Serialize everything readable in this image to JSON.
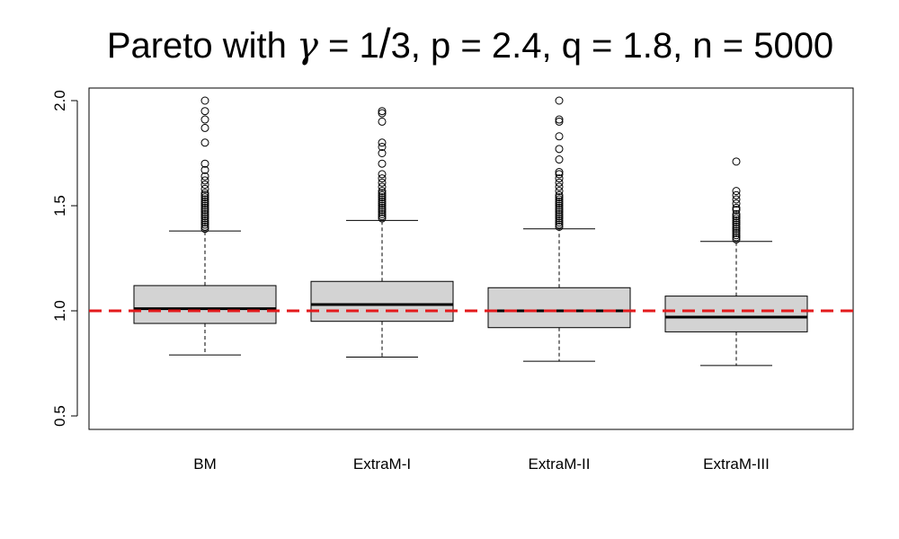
{
  "chart_data": {
    "type": "boxplot",
    "title": "Pareto with γ = 1/3, p = 2.4, q = 1.8, n = 5000",
    "title_parts": {
      "prefix": "Pareto with ",
      "gamma_symbol": "γ",
      "eq1": " = 1",
      "slash": "/",
      "rest": "3, p = 2.4, q = 1.8, n = 5000"
    },
    "xlabel": "",
    "ylabel": "",
    "ylim": [
      0.45,
      2.04
    ],
    "yticks": [
      0.5,
      1.0,
      1.5,
      2.0
    ],
    "ytick_labels": [
      "0.5",
      "1.0",
      "1.5",
      "2.0"
    ],
    "categories": [
      "BM",
      "ExtraM-I",
      "ExtraM-II",
      "ExtraM-III"
    ],
    "boxes": [
      {
        "name": "BM",
        "whisker_low": 0.79,
        "q1": 0.94,
        "median": 1.01,
        "q3": 1.12,
        "whisker_high": 1.38,
        "outliers": [
          1.39,
          1.4,
          1.41,
          1.42,
          1.43,
          1.44,
          1.45,
          1.46,
          1.47,
          1.48,
          1.49,
          1.5,
          1.51,
          1.52,
          1.53,
          1.54,
          1.55,
          1.56,
          1.58,
          1.6,
          1.62,
          1.64,
          1.67,
          1.7,
          1.8,
          1.87,
          1.91,
          1.95,
          2.0
        ]
      },
      {
        "name": "ExtraM-I",
        "whisker_low": 0.78,
        "q1": 0.95,
        "median": 1.03,
        "q3": 1.14,
        "whisker_high": 1.43,
        "outliers": [
          1.44,
          1.45,
          1.46,
          1.47,
          1.48,
          1.49,
          1.5,
          1.51,
          1.52,
          1.53,
          1.54,
          1.55,
          1.56,
          1.57,
          1.59,
          1.61,
          1.63,
          1.65,
          1.7,
          1.75,
          1.78,
          1.8,
          1.9,
          1.94,
          1.95
        ]
      },
      {
        "name": "ExtraM-II",
        "whisker_low": 0.76,
        "q1": 0.92,
        "median": 1.0,
        "q3": 1.11,
        "whisker_high": 1.39,
        "outliers": [
          1.4,
          1.41,
          1.42,
          1.43,
          1.44,
          1.45,
          1.46,
          1.47,
          1.48,
          1.49,
          1.5,
          1.51,
          1.52,
          1.53,
          1.54,
          1.55,
          1.57,
          1.59,
          1.61,
          1.63,
          1.65,
          1.66,
          1.72,
          1.77,
          1.83,
          1.9,
          1.91,
          2.0
        ]
      },
      {
        "name": "ExtraM-III",
        "whisker_low": 0.74,
        "q1": 0.9,
        "median": 0.97,
        "q3": 1.07,
        "whisker_high": 1.33,
        "outliers": [
          1.34,
          1.35,
          1.36,
          1.37,
          1.38,
          1.39,
          1.4,
          1.41,
          1.42,
          1.43,
          1.44,
          1.45,
          1.46,
          1.48,
          1.49,
          1.51,
          1.53,
          1.55,
          1.57,
          1.71
        ]
      }
    ],
    "reference_line": {
      "y": 1.0,
      "style": "dashed",
      "color": "#e31a1c"
    },
    "box_fill": "#d3d3d3",
    "grid": false,
    "legend": "none"
  }
}
